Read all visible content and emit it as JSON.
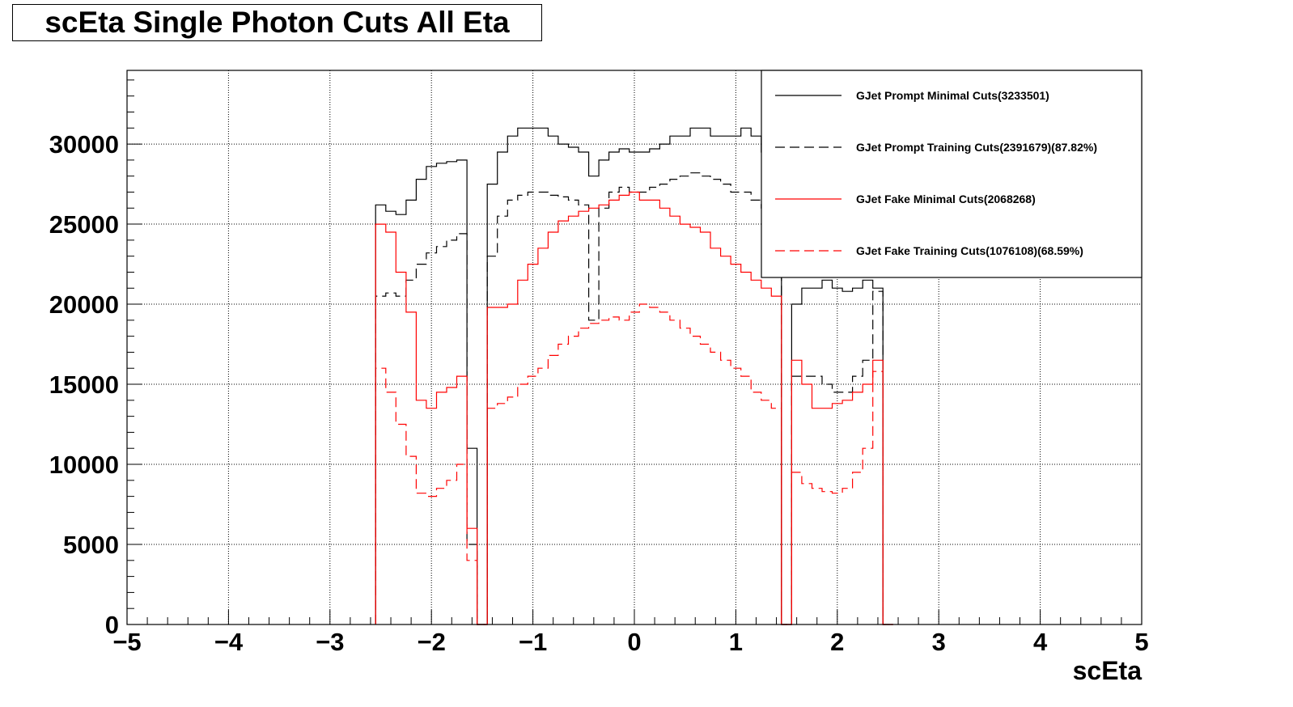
{
  "chart_data": {
    "type": "line",
    "title": "scEta Single Photon Cuts All Eta",
    "xlabel": "scEta",
    "ylabel": "",
    "xlim": [
      -5,
      5
    ],
    "ylim": [
      0,
      34600
    ],
    "grid": true,
    "legend_position": "top-right",
    "x_ticks": [
      {
        "v": -5,
        "label": "−5"
      },
      {
        "v": -4,
        "label": "−4"
      },
      {
        "v": -3,
        "label": "−3"
      },
      {
        "v": -2,
        "label": "−2"
      },
      {
        "v": -1,
        "label": "−1"
      },
      {
        "v": 0,
        "label": "0"
      },
      {
        "v": 1,
        "label": "1"
      },
      {
        "v": 2,
        "label": "2"
      },
      {
        "v": 3,
        "label": "3"
      },
      {
        "v": 4,
        "label": "4"
      },
      {
        "v": 5,
        "label": "5"
      }
    ],
    "y_ticks": [
      {
        "v": 0,
        "label": "0"
      },
      {
        "v": 5000,
        "label": "5000"
      },
      {
        "v": 10000,
        "label": "10000"
      },
      {
        "v": 15000,
        "label": "15000"
      },
      {
        "v": 20000,
        "label": "20000"
      },
      {
        "v": 25000,
        "label": "25000"
      },
      {
        "v": 30000,
        "label": "30000"
      }
    ],
    "x": [
      -2.5,
      -2.4,
      -2.3,
      -2.2,
      -2.1,
      -2.0,
      -1.9,
      -1.8,
      -1.7,
      -1.6,
      -1.5,
      -1.4,
      -1.3,
      -1.2,
      -1.1,
      -1.0,
      -0.9,
      -0.8,
      -0.7,
      -0.6,
      -0.5,
      -0.4,
      -0.3,
      -0.2,
      -0.1,
      0.0,
      0.1,
      0.2,
      0.3,
      0.4,
      0.5,
      0.6,
      0.7,
      0.8,
      0.9,
      1.0,
      1.1,
      1.2,
      1.3,
      1.4,
      1.5,
      1.6,
      1.7,
      1.8,
      1.9,
      2.0,
      2.1,
      2.2,
      2.3,
      2.4,
      2.5
    ],
    "series": [
      {
        "name": "GJet Prompt Minimal Cuts(3233501)",
        "color": "#000000",
        "dashed": false,
        "values": [
          26200,
          25800,
          25600,
          26500,
          27800,
          28600,
          28800,
          28900,
          29000,
          11000,
          0,
          27500,
          29500,
          30500,
          31000,
          31000,
          31000,
          30500,
          30000,
          29800,
          29500,
          28000,
          29000,
          29500,
          29700,
          29500,
          29500,
          29700,
          30000,
          30500,
          30500,
          31000,
          31000,
          30500,
          30500,
          30500,
          31000,
          30500,
          29500,
          28500,
          0,
          20000,
          21000,
          21000,
          21500,
          21000,
          20800,
          21000,
          21500,
          21000,
          0
        ]
      },
      {
        "name": "GJet Prompt Training Cuts(2391679)(87.82%)",
        "color": "#000000",
        "dashed": true,
        "values": [
          20500,
          20700,
          20500,
          21500,
          22500,
          23200,
          23600,
          24000,
          24400,
          5000,
          0,
          23000,
          25500,
          26500,
          26800,
          27000,
          27000,
          26800,
          26700,
          26500,
          26200,
          19000,
          26000,
          27000,
          27300,
          27000,
          27000,
          27300,
          27500,
          27800,
          28000,
          28200,
          28000,
          27800,
          27500,
          27000,
          27000,
          26500,
          26000,
          25000,
          0,
          15500,
          15500,
          15500,
          15000,
          14500,
          14500,
          15500,
          16500,
          20800,
          0
        ]
      },
      {
        "name": "GJet Fake Minimal Cuts(2068268)",
        "color": "#ff0000",
        "dashed": false,
        "values": [
          25000,
          24500,
          22000,
          19500,
          14000,
          13500,
          14500,
          14800,
          15500,
          6000,
          0,
          19800,
          19800,
          20000,
          21500,
          22500,
          23500,
          24500,
          25200,
          25500,
          25800,
          26000,
          26200,
          26500,
          26800,
          27000,
          26500,
          26500,
          26000,
          25500,
          25000,
          24800,
          24500,
          23500,
          23000,
          22500,
          22000,
          21500,
          21000,
          20500,
          0,
          16500,
          15000,
          13500,
          13500,
          13800,
          14000,
          14500,
          15000,
          16500,
          0
        ]
      },
      {
        "name": "GJet Fake Training Cuts(1076108)(68.59%)",
        "color": "#ff0000",
        "dashed": true,
        "values": [
          16000,
          14500,
          12500,
          10500,
          8200,
          8000,
          8500,
          9000,
          10000,
          4000,
          0,
          13500,
          13800,
          14200,
          15000,
          15500,
          16000,
          16800,
          17500,
          18000,
          18500,
          18800,
          19000,
          19200,
          19000,
          19500,
          20000,
          19800,
          19500,
          19000,
          18500,
          18000,
          17500,
          17000,
          16500,
          16000,
          15500,
          14500,
          14000,
          13500,
          0,
          9500,
          8800,
          8500,
          8300,
          8200,
          8500,
          9500,
          11000,
          15800,
          0
        ]
      }
    ],
    "legend": [
      "GJet Prompt Minimal Cuts(3233501)",
      "GJet Prompt Training Cuts(2391679)(87.82%)",
      "GJet Fake Minimal Cuts(2068268)",
      "GJet Fake Training Cuts(1076108)(68.59%)"
    ]
  }
}
